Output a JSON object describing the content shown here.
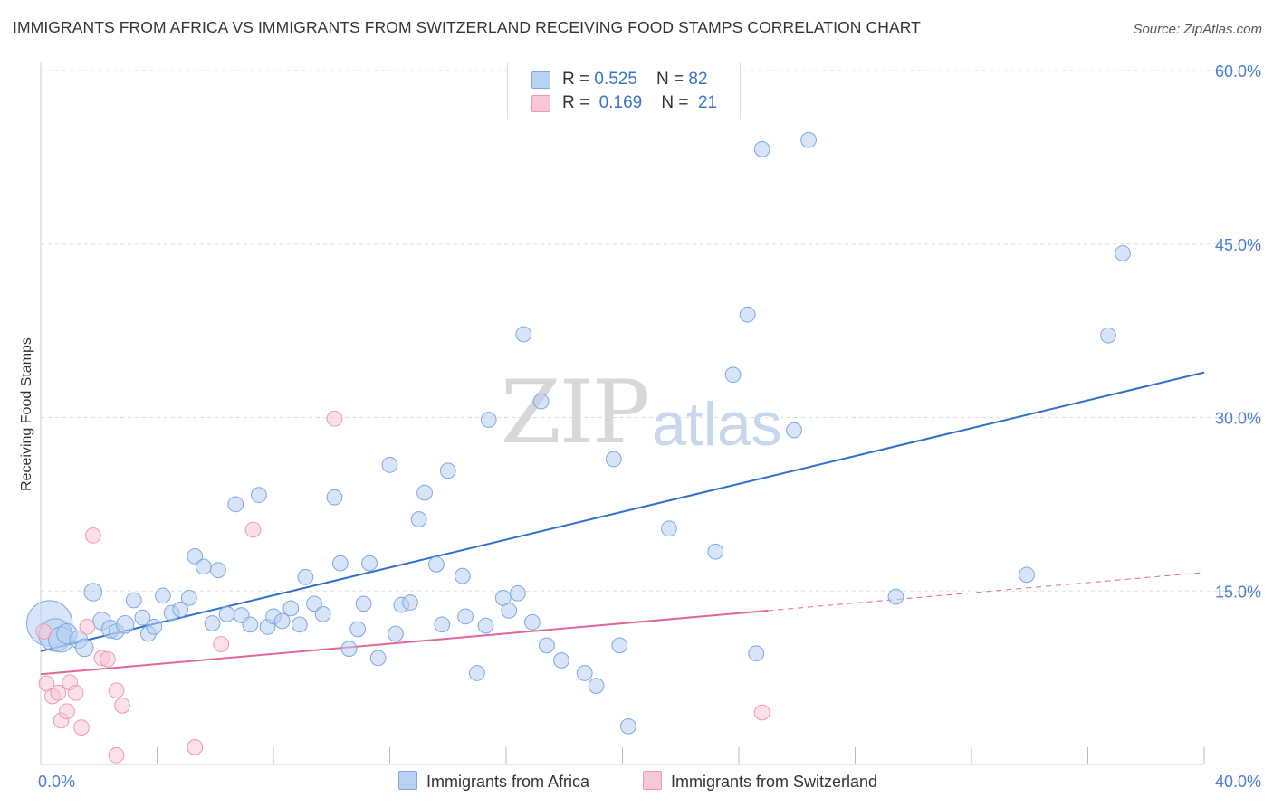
{
  "title": "IMMIGRANTS FROM AFRICA VS IMMIGRANTS FROM SWITZERLAND RECEIVING FOOD STAMPS CORRELATION CHART",
  "source": "Source: ZipAtlas.com",
  "watermark": {
    "zip": "ZIP",
    "atlas": "atlas"
  },
  "colors": {
    "africa_fill": "#b8d0f2",
    "africa_stroke": "#7ea6df",
    "africa_line": "#2f6fcc",
    "swiss_fill": "#f7c7d6",
    "swiss_stroke": "#ea9ab4",
    "swiss_line": "#e0669a",
    "tick_label": "#4a7fd0",
    "grid": "#dddddd"
  },
  "legend": {
    "rows": [
      {
        "r_label": "R = ",
        "r_value": "0.525",
        "n_label": "N = ",
        "n_value": "82"
      },
      {
        "r_label": "R = ",
        "r_value": "0.169",
        "n_label": "N = ",
        "n_value": "21"
      }
    ]
  },
  "bottom_legend": {
    "africa": "Immigrants from Africa",
    "swiss": "Immigrants from Switzerland"
  },
  "chart_data": {
    "type": "scatter",
    "title": "IMMIGRANTS FROM AFRICA VS IMMIGRANTS FROM SWITZERLAND RECEIVING FOOD STAMPS CORRELATION CHART",
    "xlabel": "",
    "ylabel": "Receiving Food Stamps",
    "xlim": [
      0,
      40
    ],
    "ylim": [
      0,
      60
    ],
    "x_tick_labels": [
      {
        "value": 0,
        "label": "0.0%"
      },
      {
        "value": 40,
        "label": "40.0%"
      }
    ],
    "y_tick_labels": [
      {
        "value": 15,
        "label": "15.0%"
      },
      {
        "value": 30,
        "label": "30.0%"
      },
      {
        "value": 45,
        "label": "45.0%"
      },
      {
        "value": 60,
        "label": "60.0%"
      }
    ],
    "x_minor_ticks": [
      4,
      8,
      12,
      16,
      20,
      24,
      28,
      32,
      36,
      40
    ],
    "grid": true,
    "legend_position": "top-center",
    "series": [
      {
        "name": "Immigrants from Africa",
        "r": 0.525,
        "n": 82,
        "trend": {
          "x": [
            0,
            40
          ],
          "y": [
            9.8,
            33.9
          ],
          "dashed_from": null
        },
        "points": [
          [
            0.3,
            12.2,
            1.8
          ],
          [
            0.5,
            11.2,
            1.3
          ],
          [
            0.7,
            10.8,
            1.0
          ],
          [
            0.9,
            11.3,
            0.8
          ],
          [
            1.3,
            10.8,
            0.7
          ],
          [
            1.5,
            10.1,
            0.7
          ],
          [
            1.8,
            14.9,
            0.7
          ],
          [
            2.1,
            12.4,
            0.7
          ],
          [
            2.4,
            11.7,
            0.7
          ],
          [
            2.6,
            11.5,
            0.6
          ],
          [
            2.9,
            12.1,
            0.7
          ],
          [
            3.2,
            14.2,
            0.6
          ],
          [
            3.5,
            12.7,
            0.6
          ],
          [
            3.7,
            11.3,
            0.6
          ],
          [
            3.9,
            11.9,
            0.6
          ],
          [
            4.2,
            14.6,
            0.6
          ],
          [
            4.5,
            13.1,
            0.6
          ],
          [
            4.8,
            13.4,
            0.6
          ],
          [
            5.1,
            14.4,
            0.6
          ],
          [
            5.3,
            18.0,
            0.6
          ],
          [
            5.6,
            17.1,
            0.6
          ],
          [
            5.9,
            12.2,
            0.6
          ],
          [
            6.1,
            16.8,
            0.6
          ],
          [
            6.4,
            13.0,
            0.6
          ],
          [
            6.7,
            22.5,
            0.6
          ],
          [
            6.9,
            12.9,
            0.6
          ],
          [
            7.2,
            12.1,
            0.6
          ],
          [
            7.5,
            23.3,
            0.6
          ],
          [
            7.8,
            11.9,
            0.6
          ],
          [
            8.0,
            12.8,
            0.6
          ],
          [
            8.3,
            12.4,
            0.6
          ],
          [
            8.6,
            13.5,
            0.6
          ],
          [
            8.9,
            12.1,
            0.6
          ],
          [
            9.1,
            16.2,
            0.6
          ],
          [
            9.4,
            13.9,
            0.6
          ],
          [
            9.7,
            13.0,
            0.6
          ],
          [
            10.1,
            23.1,
            0.6
          ],
          [
            10.3,
            17.4,
            0.6
          ],
          [
            10.6,
            10.0,
            0.6
          ],
          [
            10.9,
            11.7,
            0.6
          ],
          [
            11.1,
            13.9,
            0.6
          ],
          [
            11.3,
            17.4,
            0.6
          ],
          [
            11.6,
            9.2,
            0.6
          ],
          [
            12.0,
            25.9,
            0.6
          ],
          [
            12.2,
            11.3,
            0.6
          ],
          [
            12.4,
            13.8,
            0.6
          ],
          [
            12.7,
            14.0,
            0.6
          ],
          [
            13.0,
            21.2,
            0.6
          ],
          [
            13.2,
            23.5,
            0.6
          ],
          [
            13.6,
            17.3,
            0.6
          ],
          [
            13.8,
            12.1,
            0.6
          ],
          [
            14.0,
            25.4,
            0.6
          ],
          [
            14.5,
            16.3,
            0.6
          ],
          [
            14.6,
            12.8,
            0.6
          ],
          [
            15.0,
            7.9,
            0.6
          ],
          [
            15.3,
            12.0,
            0.6
          ],
          [
            15.4,
            29.8,
            0.6
          ],
          [
            15.9,
            14.4,
            0.6
          ],
          [
            16.1,
            13.3,
            0.6
          ],
          [
            16.4,
            14.8,
            0.6
          ],
          [
            16.6,
            37.2,
            0.6
          ],
          [
            16.9,
            12.3,
            0.6
          ],
          [
            17.2,
            31.4,
            0.6
          ],
          [
            17.4,
            10.3,
            0.6
          ],
          [
            17.9,
            9.0,
            0.6
          ],
          [
            18.7,
            7.9,
            0.6
          ],
          [
            19.1,
            6.8,
            0.6
          ],
          [
            19.7,
            26.4,
            0.6
          ],
          [
            19.9,
            10.3,
            0.6
          ],
          [
            20.2,
            3.3,
            0.6
          ],
          [
            21.6,
            20.4,
            0.6
          ],
          [
            23.2,
            18.4,
            0.6
          ],
          [
            23.8,
            33.7,
            0.6
          ],
          [
            24.3,
            38.9,
            0.6
          ],
          [
            24.6,
            9.6,
            0.6
          ],
          [
            24.8,
            53.2,
            0.6
          ],
          [
            25.9,
            28.9,
            0.6
          ],
          [
            26.4,
            54.0,
            0.6
          ],
          [
            29.4,
            14.5,
            0.6
          ],
          [
            33.9,
            16.4,
            0.6
          ],
          [
            36.7,
            37.1,
            0.6
          ],
          [
            37.2,
            44.2,
            0.6
          ]
        ]
      },
      {
        "name": "Immigrants from Switzerland",
        "r": 0.169,
        "n": 21,
        "trend": {
          "x": [
            0,
            40
          ],
          "y": [
            7.8,
            16.6
          ],
          "dashed_from": 25
        },
        "points": [
          [
            0.2,
            7.0,
            0.6
          ],
          [
            0.4,
            5.9,
            0.6
          ],
          [
            0.6,
            6.2,
            0.6
          ],
          [
            0.7,
            3.8,
            0.6
          ],
          [
            0.9,
            4.6,
            0.6
          ],
          [
            1.0,
            7.1,
            0.6
          ],
          [
            1.2,
            6.2,
            0.6
          ],
          [
            1.4,
            3.2,
            0.6
          ],
          [
            1.6,
            11.9,
            0.6
          ],
          [
            1.8,
            19.8,
            0.6
          ],
          [
            2.1,
            9.2,
            0.6
          ],
          [
            2.3,
            9.1,
            0.6
          ],
          [
            2.6,
            6.4,
            0.6
          ],
          [
            2.8,
            5.1,
            0.6
          ],
          [
            2.6,
            0.8,
            0.6
          ],
          [
            5.3,
            1.5,
            0.6
          ],
          [
            6.2,
            10.4,
            0.6
          ],
          [
            7.3,
            20.3,
            0.6
          ],
          [
            10.1,
            29.9,
            0.6
          ],
          [
            24.8,
            4.5,
            0.6
          ],
          [
            0.1,
            11.5,
            0.6
          ]
        ]
      }
    ]
  }
}
